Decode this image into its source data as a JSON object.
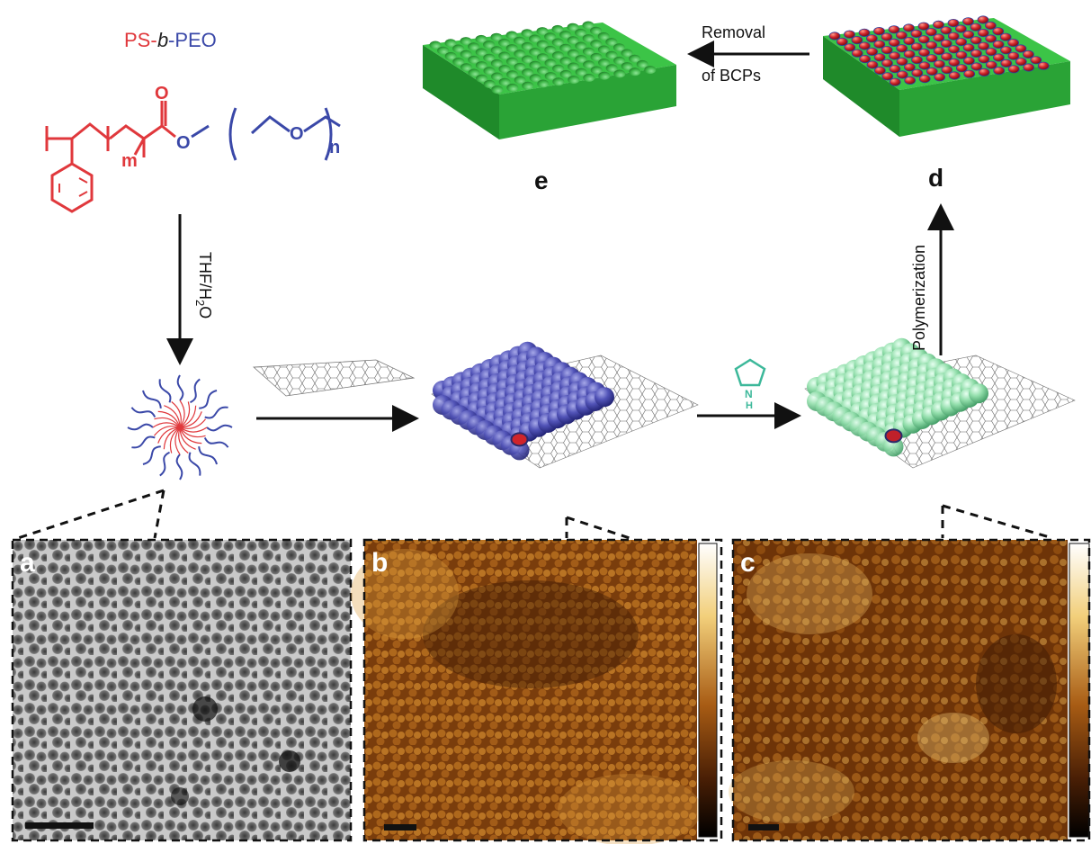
{
  "polymer": {
    "name_ps": "PS-",
    "name_b": "b",
    "name_peo": "-PEO",
    "atom_o_carbonyl": "O",
    "atom_o_ester": "O",
    "atom_o_ether": "O",
    "sub_m": "m",
    "sub_n": "n"
  },
  "steps": {
    "solvent_main": "THF/H",
    "solvent_sub": "2",
    "solvent_end": "O",
    "polymerization": "Polymerization",
    "removal_line1": "Removal",
    "removal_line2": "of BCPs",
    "pyrrole_label": "N\nH",
    "pyrrole_n": "N",
    "pyrrole_h": "H"
  },
  "labels": {
    "d": "d",
    "e": "e",
    "a": "a",
    "b": "b",
    "c": "c"
  },
  "colors": {
    "ps": "#e0383c",
    "peo": "#3a48a8",
    "film_green": "#2fa83a",
    "film_top": "#3cc447",
    "sphere_blue": "#4848a6",
    "sphere_green": "#8fdba7",
    "pyrrole": "#3cb89a",
    "hole_red": "#c0202a"
  }
}
